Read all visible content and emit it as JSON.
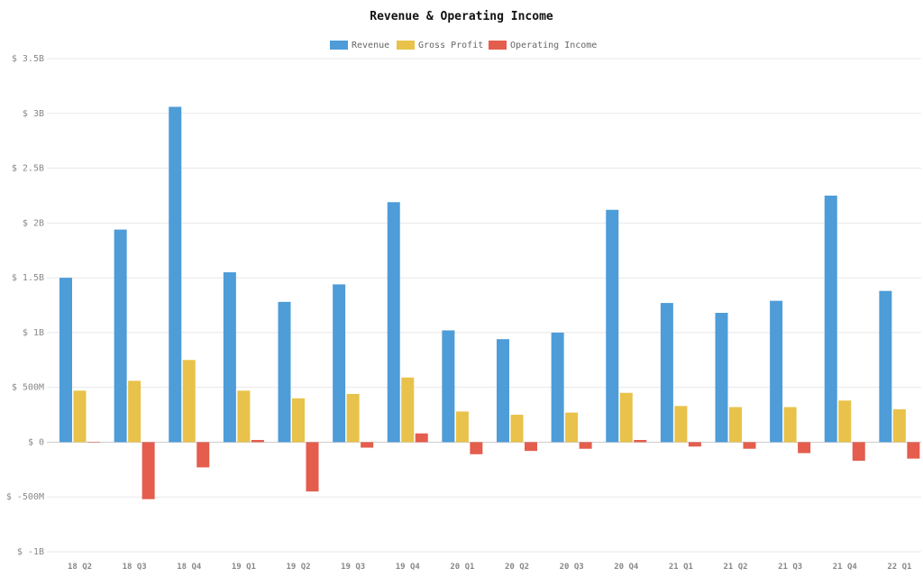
{
  "chart_data": {
    "type": "bar",
    "title": "Revenue & Operating Income",
    "xlabel": "",
    "ylabel": "",
    "categories": [
      "18 Q2",
      "18 Q3",
      "18 Q4",
      "19 Q1",
      "19 Q2",
      "19 Q3",
      "19 Q4",
      "20 Q1",
      "20 Q2",
      "20 Q3",
      "20 Q4",
      "21 Q1",
      "21 Q2",
      "21 Q3",
      "21 Q4",
      "22 Q1"
    ],
    "series": [
      {
        "name": "Revenue",
        "color": "#4e9cd8",
        "values": [
          1.5,
          1.94,
          3.06,
          1.55,
          1.28,
          1.44,
          2.19,
          1.02,
          0.94,
          1.0,
          2.12,
          1.27,
          1.18,
          1.29,
          2.25,
          1.38
        ]
      },
      {
        "name": "Gross Profit",
        "color": "#e8c24a",
        "values": [
          0.47,
          0.56,
          0.75,
          0.47,
          0.4,
          0.44,
          0.59,
          0.28,
          0.25,
          0.27,
          0.45,
          0.33,
          0.32,
          0.32,
          0.38,
          0.3
        ]
      },
      {
        "name": "Operating Income",
        "color": "#e45d4d",
        "values": [
          0.0,
          -0.52,
          -0.23,
          0.02,
          -0.45,
          -0.05,
          0.08,
          -0.11,
          -0.08,
          -0.06,
          0.02,
          -0.04,
          -0.06,
          -0.1,
          -0.17,
          -0.15
        ]
      }
    ],
    "unit": "billions USD",
    "ylim": [
      -1.0,
      3.5
    ],
    "yticks": [
      {
        "value": 3.5,
        "label": "$ 3.5B"
      },
      {
        "value": 3.0,
        "label": "$ 3B"
      },
      {
        "value": 2.5,
        "label": "$ 2.5B"
      },
      {
        "value": 2.0,
        "label": "$ 2B"
      },
      {
        "value": 1.5,
        "label": "$ 1.5B"
      },
      {
        "value": 1.0,
        "label": "$ 1B"
      },
      {
        "value": 0.5,
        "label": "$ 500M"
      },
      {
        "value": 0.0,
        "label": "$ 0"
      },
      {
        "value": -0.5,
        "label": "$ -500M"
      },
      {
        "value": -1.0,
        "label": "$ -1B"
      }
    ],
    "grid": true,
    "legend": "top-center"
  }
}
